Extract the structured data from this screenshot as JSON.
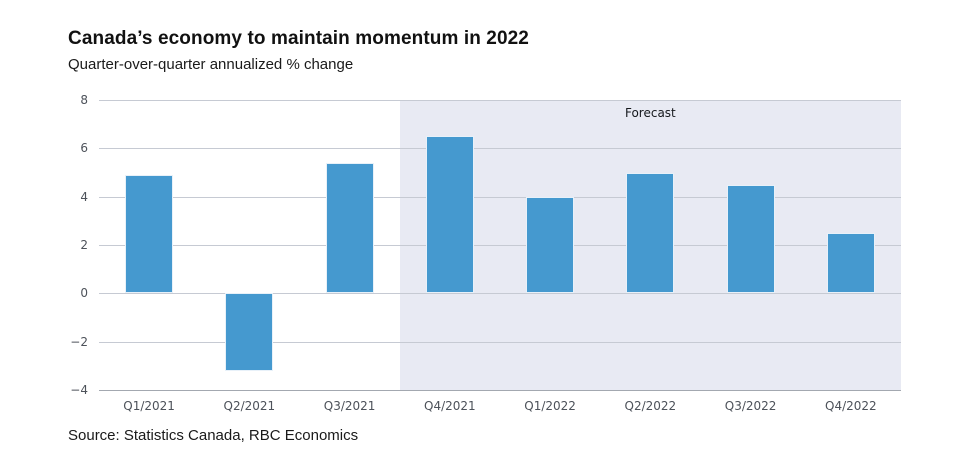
{
  "chart_data": {
    "type": "bar",
    "title": "Canada’s economy to maintain momentum in 2022",
    "subtitle": "Quarter-over-quarter annualized % change",
    "categories": [
      "Q1/2021",
      "Q2/2021",
      "Q3/2021",
      "Q4/2021",
      "Q1/2022",
      "Q2/2022",
      "Q3/2022",
      "Q4/2022"
    ],
    "values": [
      4.9,
      -3.2,
      5.4,
      6.5,
      4.0,
      5.0,
      4.5,
      2.5
    ],
    "ylim": [
      -4,
      8
    ],
    "yticks": [
      8,
      6,
      4,
      2,
      0,
      -2,
      -4
    ],
    "grid": true,
    "legend_position": "none",
    "forecast_region": {
      "label": "Forecast",
      "start_index": 3
    },
    "source": "Source: Statistics Canada, RBC Economics",
    "colors": {
      "bar": "#4599cf",
      "forecast_bg": "#e8eaf3",
      "gridline": "#c6cad3",
      "axis_line": "#a3a8b0",
      "tick_label": "#4d525a",
      "text": "#111111"
    }
  }
}
